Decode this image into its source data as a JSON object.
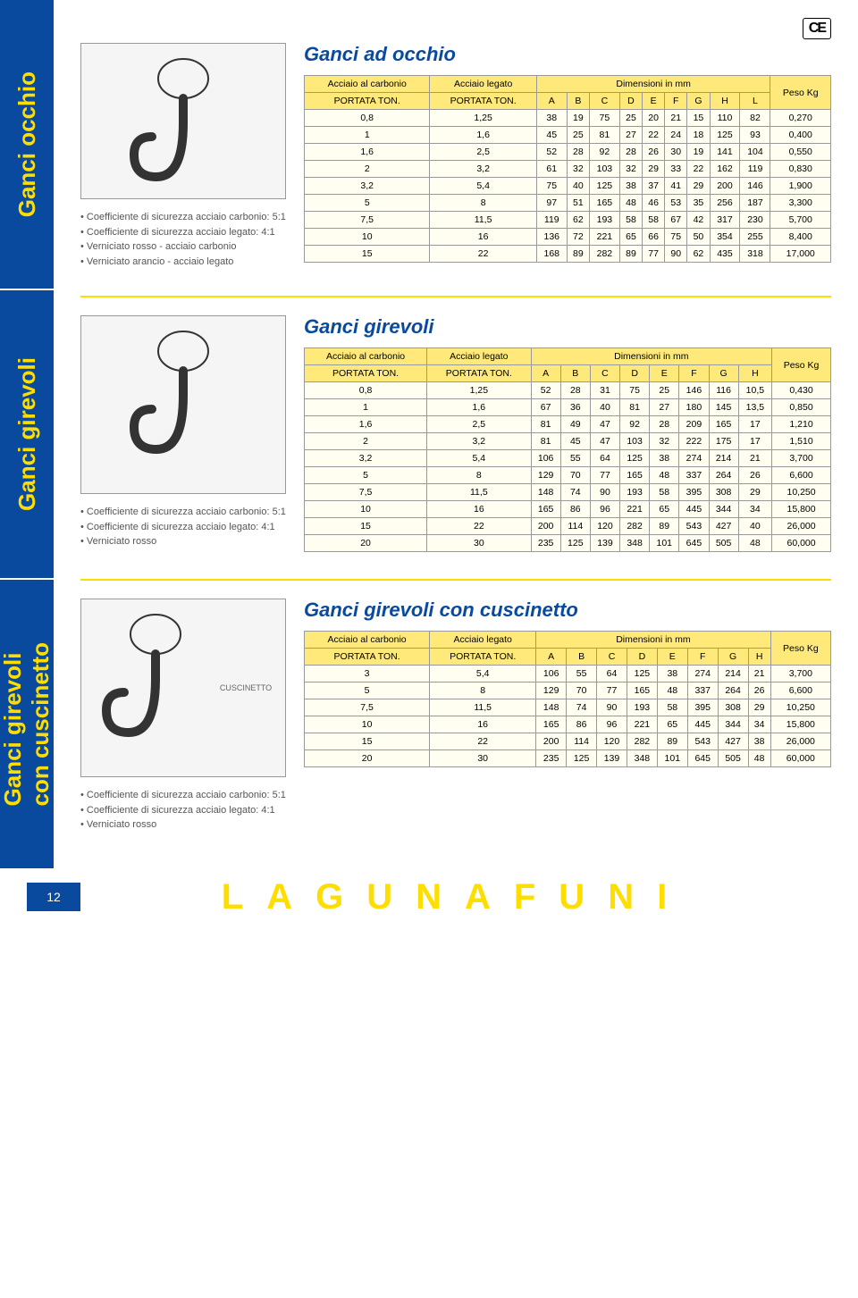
{
  "ce_label": "CE",
  "sidebar": {
    "tabs": [
      {
        "label": "Ganci occhio"
      },
      {
        "label": "Ganci girevoli"
      },
      {
        "label": "Ganci girevoli\ncon cuscinetto"
      }
    ]
  },
  "sections": [
    {
      "title": "Ganci ad occhio",
      "diagram_h": 175,
      "bullets": [
        "Coefficiente di sicurezza acciaio carbonio: 5:1",
        "Coefficiente di sicurezza acciaio legato: 4:1",
        "Verniciato rosso - acciaio carbonio",
        "Verniciato arancio - acciaio legato"
      ],
      "top_headers": [
        "Acciaio al carbonio",
        "Acciaio legato",
        "Dimensioni in mm",
        "Peso Kg"
      ],
      "sub_headers": [
        "PORTATA TON.",
        "PORTATA TON.",
        "A",
        "B",
        "C",
        "D",
        "E",
        "F",
        "G",
        "H",
        "L",
        ""
      ],
      "dim_span": 9,
      "rows": [
        [
          "0,8",
          "1,25",
          "38",
          "19",
          "75",
          "25",
          "20",
          "21",
          "15",
          "110",
          "82",
          "0,270"
        ],
        [
          "1",
          "1,6",
          "45",
          "25",
          "81",
          "27",
          "22",
          "24",
          "18",
          "125",
          "93",
          "0,400"
        ],
        [
          "1,6",
          "2,5",
          "52",
          "28",
          "92",
          "28",
          "26",
          "30",
          "19",
          "141",
          "104",
          "0,550"
        ],
        [
          "2",
          "3,2",
          "61",
          "32",
          "103",
          "32",
          "29",
          "33",
          "22",
          "162",
          "119",
          "0,830"
        ],
        [
          "3,2",
          "5,4",
          "75",
          "40",
          "125",
          "38",
          "37",
          "41",
          "29",
          "200",
          "146",
          "1,900"
        ],
        [
          "5",
          "8",
          "97",
          "51",
          "165",
          "48",
          "46",
          "53",
          "35",
          "256",
          "187",
          "3,300"
        ],
        [
          "7,5",
          "11,5",
          "119",
          "62",
          "193",
          "58",
          "58",
          "67",
          "42",
          "317",
          "230",
          "5,700"
        ],
        [
          "10",
          "16",
          "136",
          "72",
          "221",
          "65",
          "66",
          "75",
          "50",
          "354",
          "255",
          "8,400"
        ],
        [
          "15",
          "22",
          "168",
          "89",
          "282",
          "89",
          "77",
          "90",
          "62",
          "435",
          "318",
          "17,000"
        ]
      ]
    },
    {
      "title": "Ganci girevoli",
      "diagram_h": 200,
      "bullets": [
        "Coefficiente di sicurezza acciaio carbonio: 5:1",
        "Coefficiente di sicurezza acciaio legato: 4:1",
        "Verniciato rosso"
      ],
      "top_headers": [
        "Acciaio al carbonio",
        "Acciaio legato",
        "Dimensioni in mm",
        "Peso Kg"
      ],
      "sub_headers": [
        "PORTATA TON.",
        "PORTATA TON.",
        "A",
        "B",
        "C",
        "D",
        "E",
        "F",
        "G",
        "H",
        ""
      ],
      "dim_span": 8,
      "rows": [
        [
          "0,8",
          "1,25",
          "52",
          "28",
          "31",
          "75",
          "25",
          "146",
          "116",
          "10,5",
          "0,430"
        ],
        [
          "1",
          "1,6",
          "67",
          "36",
          "40",
          "81",
          "27",
          "180",
          "145",
          "13,5",
          "0,850"
        ],
        [
          "1,6",
          "2,5",
          "81",
          "49",
          "47",
          "92",
          "28",
          "209",
          "165",
          "17",
          "1,210"
        ],
        [
          "2",
          "3,2",
          "81",
          "45",
          "47",
          "103",
          "32",
          "222",
          "175",
          "17",
          "1,510"
        ],
        [
          "3,2",
          "5,4",
          "106",
          "55",
          "64",
          "125",
          "38",
          "274",
          "214",
          "21",
          "3,700"
        ],
        [
          "5",
          "8",
          "129",
          "70",
          "77",
          "165",
          "48",
          "337",
          "264",
          "26",
          "6,600"
        ],
        [
          "7,5",
          "11,5",
          "148",
          "74",
          "90",
          "193",
          "58",
          "395",
          "308",
          "29",
          "10,250"
        ],
        [
          "10",
          "16",
          "165",
          "86",
          "96",
          "221",
          "65",
          "445",
          "344",
          "34",
          "15,800"
        ],
        [
          "15",
          "22",
          "200",
          "114",
          "120",
          "282",
          "89",
          "543",
          "427",
          "40",
          "26,000"
        ],
        [
          "20",
          "30",
          "235",
          "125",
          "139",
          "348",
          "101",
          "645",
          "505",
          "48",
          "60,000"
        ]
      ]
    },
    {
      "title": "Ganci girevoli con cuscinetto",
      "diagram_h": 200,
      "diagram_extra": "CUSCINETTO",
      "bullets": [
        "Coefficiente di sicurezza acciaio carbonio: 5:1",
        "Coefficiente di sicurezza acciaio legato: 4:1",
        "Verniciato rosso"
      ],
      "top_headers": [
        "Acciaio al carbonio",
        "Acciaio legato",
        "Dimensioni in mm",
        "Peso Kg"
      ],
      "sub_headers": [
        "PORTATA TON.",
        "PORTATA TON.",
        "A",
        "B",
        "C",
        "D",
        "E",
        "F",
        "G",
        "H",
        ""
      ],
      "dim_span": 8,
      "rows": [
        [
          "3",
          "5,4",
          "106",
          "55",
          "64",
          "125",
          "38",
          "274",
          "214",
          "21",
          "3,700"
        ],
        [
          "5",
          "8",
          "129",
          "70",
          "77",
          "165",
          "48",
          "337",
          "264",
          "26",
          "6,600"
        ],
        [
          "7,5",
          "11,5",
          "148",
          "74",
          "90",
          "193",
          "58",
          "395",
          "308",
          "29",
          "10,250"
        ],
        [
          "10",
          "16",
          "165",
          "86",
          "96",
          "221",
          "65",
          "445",
          "344",
          "34",
          "15,800"
        ],
        [
          "15",
          "22",
          "200",
          "114",
          "120",
          "282",
          "89",
          "543",
          "427",
          "38",
          "26,000"
        ],
        [
          "20",
          "30",
          "235",
          "125",
          "139",
          "348",
          "101",
          "645",
          "505",
          "48",
          "60,000"
        ]
      ]
    }
  ],
  "footer": {
    "page": "12",
    "brand": "LAGUNAFUNI"
  }
}
